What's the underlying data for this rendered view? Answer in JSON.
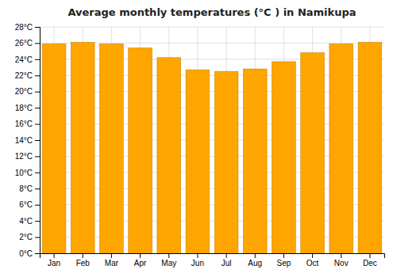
{
  "chart_data": {
    "type": "bar",
    "title": "Average monthly temperatures (°C ) in Namikupa",
    "categories": [
      "Jan",
      "Feb",
      "Mar",
      "Apr",
      "May",
      "Jun",
      "Jul",
      "Aug",
      "Sep",
      "Oct",
      "Nov",
      "Dec"
    ],
    "values": [
      25.9,
      26.1,
      25.9,
      25.4,
      24.2,
      22.7,
      22.5,
      22.8,
      23.7,
      24.8,
      25.9,
      26.1
    ],
    "color": "#FFA500",
    "ylim": [
      0,
      28
    ],
    "yticks": [
      {
        "value": 0,
        "label": "0°C"
      },
      {
        "value": 2,
        "label": "2°C"
      },
      {
        "value": 4,
        "label": "4°C"
      },
      {
        "value": 6,
        "label": "6°C"
      },
      {
        "value": 8,
        "label": "8°C"
      },
      {
        "value": 10,
        "label": "10°C"
      },
      {
        "value": 12,
        "label": "12°C"
      },
      {
        "value": 14,
        "label": "14°C"
      },
      {
        "value": 16,
        "label": "16°C"
      },
      {
        "value": 18,
        "label": "18°C"
      },
      {
        "value": 20,
        "label": "20°C"
      },
      {
        "value": 22,
        "label": "22°C"
      },
      {
        "value": 24,
        "label": "24°C"
      },
      {
        "value": 26,
        "label": "26°C"
      },
      {
        "value": 28,
        "label": "28°C"
      }
    ],
    "grid": true
  }
}
